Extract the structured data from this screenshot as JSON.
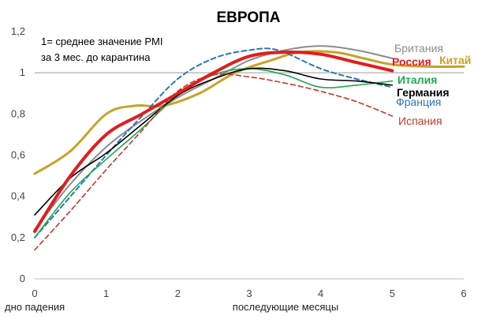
{
  "chart_data": {
    "type": "line",
    "title": "ЕВРОПА",
    "annotation": [
      "1= среднее значение PMI",
      "за 3 мес. до карантина"
    ],
    "xlabel_left": "дно падения",
    "xlabel": "последующие месяцы",
    "xlim": [
      0,
      6
    ],
    "ylim": [
      0,
      1.2
    ],
    "x_ticks": [
      "0",
      "1",
      "2",
      "3",
      "4",
      "5",
      "6"
    ],
    "y_ticks": [
      "0",
      "0,2",
      "0,4",
      "0,6",
      "0,8",
      "1",
      "1,2"
    ],
    "grid": false,
    "reference_line": 1,
    "series": [
      {
        "name": "Китай",
        "color": "#c9a227",
        "style": "solid",
        "width": 3,
        "label_weight": "bold",
        "x": [
          0,
          0.5,
          1,
          1.4,
          1.8,
          2.3,
          2.8,
          3.3,
          3.7,
          4.2,
          4.6,
          5,
          5.5,
          6
        ],
        "y": [
          0.51,
          0.62,
          0.8,
          0.84,
          0.84,
          0.9,
          1.0,
          1.06,
          1.1,
          1.1,
          1.07,
          1.04,
          1.03,
          1.03
        ]
      },
      {
        "name": "Британия",
        "color": "#8c8c8c",
        "style": "solid",
        "width": 2,
        "label_weight": "normal",
        "x": [
          0,
          0.5,
          1,
          1.5,
          2,
          2.5,
          3,
          3.5,
          4,
          4.5,
          5
        ],
        "y": [
          0.24,
          0.46,
          0.64,
          0.77,
          0.88,
          0.97,
          1.06,
          1.11,
          1.13,
          1.11,
          1.07
        ]
      },
      {
        "name": "Франция",
        "color": "#2e75b6",
        "style": "dashed",
        "width": 2,
        "label_weight": "normal",
        "x": [
          0,
          0.5,
          1,
          1.5,
          2,
          2.5,
          3,
          3.4,
          4,
          4.5,
          5
        ],
        "y": [
          0.2,
          0.4,
          0.6,
          0.79,
          0.97,
          1.07,
          1.11,
          1.11,
          1.02,
          0.97,
          0.93
        ]
      },
      {
        "name": "Италия",
        "color": "#1fa84f",
        "style": "solid",
        "width": 1.6,
        "label_weight": "bold",
        "x": [
          0,
          0.5,
          1,
          1.5,
          2,
          2.5,
          3,
          3.5,
          4,
          4.5,
          5
        ],
        "y": [
          0.2,
          0.42,
          0.58,
          0.73,
          0.89,
          0.99,
          1.02,
          0.99,
          0.93,
          0.94,
          0.96
        ]
      },
      {
        "name": "Германия",
        "color": "#000000",
        "style": "solid",
        "width": 1.6,
        "label_weight": "bold",
        "x": [
          0,
          0.5,
          1,
          1.5,
          2,
          2.5,
          3,
          3.5,
          4,
          4.5,
          5
        ],
        "y": [
          0.31,
          0.49,
          0.61,
          0.75,
          0.89,
          0.97,
          1.02,
          1.01,
          0.97,
          0.96,
          0.94
        ]
      },
      {
        "name": "Испания",
        "color": "#c0392b",
        "style": "dashed",
        "width": 1.6,
        "label_weight": "normal",
        "x": [
          0,
          0.5,
          1,
          1.5,
          2,
          2.5,
          3,
          3.5,
          4,
          4.5,
          5
        ],
        "y": [
          0.14,
          0.33,
          0.53,
          0.72,
          0.91,
          0.99,
          0.98,
          0.95,
          0.91,
          0.86,
          0.79
        ]
      },
      {
        "name": "Россия",
        "color": "#e31c1c",
        "style": "solid",
        "width": 4,
        "label_weight": "bold",
        "x": [
          0,
          0.5,
          1,
          1.5,
          2,
          2.5,
          3,
          3.5,
          4,
          4.5,
          5
        ],
        "y": [
          0.23,
          0.5,
          0.7,
          0.8,
          0.9,
          1.0,
          1.08,
          1.1,
          1.09,
          1.05,
          1.01
        ]
      }
    ]
  }
}
